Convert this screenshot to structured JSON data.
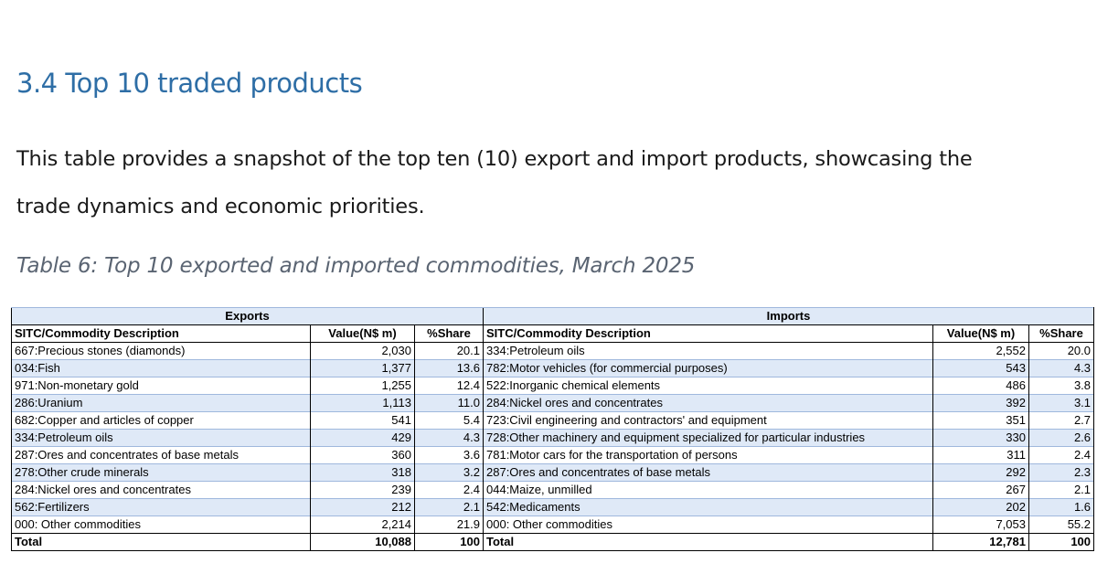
{
  "section": {
    "heading": "3.4 Top 10 traded products",
    "paragraph_line1": "This table provides a snapshot of the top ten (10) export and import products, showcasing the",
    "paragraph_line2": "trade dynamics and economic priorities.",
    "caption": "Table 6: Top 10 exported and imported commodities, March 2025"
  },
  "table": {
    "exports_title": "Exports",
    "imports_title": "Imports",
    "col_desc": "SITC/Commodity Description",
    "col_value": "Value(N$ m)",
    "col_share": "%Share",
    "rows": [
      {
        "e_desc": "667:Precious stones (diamonds)",
        "e_val": "2,030",
        "e_share": "20.1",
        "i_desc": "334:Petroleum oils",
        "i_val": "2,552",
        "i_share": "20.0"
      },
      {
        "e_desc": "034:Fish",
        "e_val": "1,377",
        "e_share": "13.6",
        "i_desc": "782:Motor vehicles (for commercial purposes)",
        "i_val": "543",
        "i_share": "4.3"
      },
      {
        "e_desc": "971:Non-monetary gold",
        "e_val": "1,255",
        "e_share": "12.4",
        "i_desc": "522:Inorganic chemical elements",
        "i_val": "486",
        "i_share": "3.8"
      },
      {
        "e_desc": "286:Uranium",
        "e_val": "1,113",
        "e_share": "11.0",
        "i_desc": "284:Nickel ores and concentrates",
        "i_val": "392",
        "i_share": "3.1"
      },
      {
        "e_desc": "682:Copper and articles of copper",
        "e_val": "541",
        "e_share": "5.4",
        "i_desc": "723:Civil engineering and contractors' and equipment",
        "i_val": "351",
        "i_share": "2.7"
      },
      {
        "e_desc": "334:Petroleum oils",
        "e_val": "429",
        "e_share": "4.3",
        "i_desc": "728:Other machinery and equipment specialized for particular industries",
        "i_val": "330",
        "i_share": "2.6"
      },
      {
        "e_desc": "287:Ores and concentrates of base metals",
        "e_val": "360",
        "e_share": "3.6",
        "i_desc": "781:Motor cars for the transportation of persons",
        "i_val": "311",
        "i_share": "2.4"
      },
      {
        "e_desc": "278:Other crude minerals",
        "e_val": "318",
        "e_share": "3.2",
        "i_desc": "287:Ores and concentrates of base metals",
        "i_val": "292",
        "i_share": "2.3"
      },
      {
        "e_desc": "284:Nickel ores and concentrates",
        "e_val": "239",
        "e_share": "2.4",
        "i_desc": "044:Maize, unmilled",
        "i_val": "267",
        "i_share": "2.1"
      },
      {
        "e_desc": "562:Fertilizers",
        "e_val": "212",
        "e_share": "2.1",
        "i_desc": "542:Medicaments",
        "i_val": "202",
        "i_share": "1.6"
      },
      {
        "e_desc": "000: Other commodities",
        "e_val": "2,214",
        "e_share": "21.9",
        "i_desc": "000: Other commodities",
        "i_val": "7,053",
        "i_share": "55.2"
      }
    ],
    "total": {
      "e_desc": "Total",
      "e_val": "10,088",
      "e_share": "100",
      "i_desc": "Total",
      "i_val": "12,781",
      "i_share": "100"
    }
  }
}
